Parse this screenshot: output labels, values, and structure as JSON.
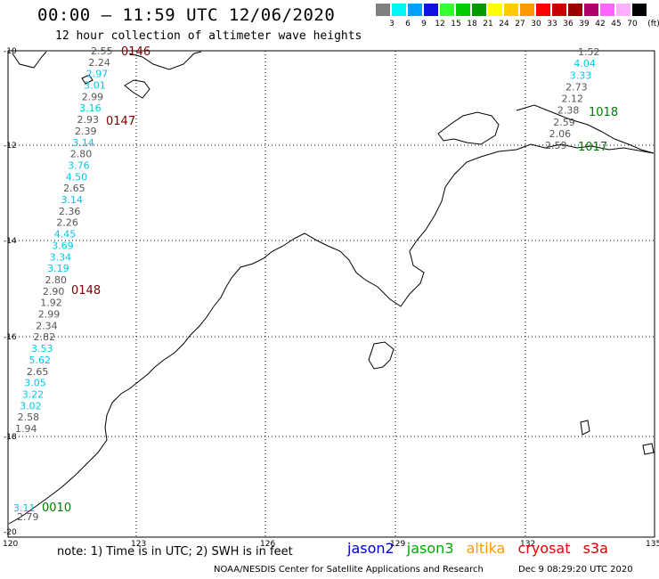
{
  "title": "00:00 – 11:59 UTC 12/06/2020",
  "subtitle": "12 hour collection of altimeter wave heights",
  "legend": {
    "colors": [
      "#7f7f7f",
      "#00f5f5",
      "#00a0ff",
      "#1010e0",
      "#33ff33",
      "#00cc00",
      "#009900",
      "#ffff00",
      "#ffcc00",
      "#ff9900",
      "#ff0000",
      "#cc0000",
      "#990000",
      "#b0006a",
      "#ff66ff",
      "#ffb0ff",
      "#000000"
    ],
    "levels": [
      "3",
      "6",
      "9",
      "12",
      "15",
      "18",
      "21",
      "24",
      "27",
      "30",
      "33",
      "36",
      "39",
      "42",
      "45",
      "70"
    ],
    "unit": "(ft)"
  },
  "axes": {
    "lat_labels": [
      "-10",
      "-12",
      "-14",
      "-16",
      "-18",
      "-20"
    ],
    "lon_labels": [
      "120",
      "123",
      "126",
      "129",
      "132",
      "135"
    ]
  },
  "passes": [
    {
      "time": "0146",
      "color": "#7a0000"
    },
    {
      "time": "0147",
      "color": "#7a0000"
    },
    {
      "time": "0148",
      "color": "#7a0000"
    },
    {
      "time": "0010",
      "color": "#007a00"
    },
    {
      "time": "1018",
      "color": "#007a00"
    },
    {
      "time": "1017",
      "color": "#007a00"
    }
  ],
  "track_a_values": [
    {
      "v": "2.55",
      "c": "#555555"
    },
    {
      "v": "2.24",
      "c": "#555555"
    },
    {
      "v": "2.97",
      "c": "#00c8e8"
    },
    {
      "v": "3.01",
      "c": "#00c8e8"
    },
    {
      "v": "2.99",
      "c": "#555555"
    },
    {
      "v": "3.16",
      "c": "#00c8e8"
    },
    {
      "v": "2.93",
      "c": "#555555"
    },
    {
      "v": "2.39",
      "c": "#555555"
    },
    {
      "v": "3.14",
      "c": "#00c8e8"
    },
    {
      "v": "2.80",
      "c": "#555555"
    },
    {
      "v": "3.76",
      "c": "#00c8e8"
    },
    {
      "v": "4.50",
      "c": "#00c8e8"
    },
    {
      "v": "2.65",
      "c": "#555555"
    },
    {
      "v": "3.14",
      "c": "#00c8e8"
    },
    {
      "v": "2.36",
      "c": "#555555"
    },
    {
      "v": "2.26",
      "c": "#555555"
    },
    {
      "v": "4.45",
      "c": "#00c8e8"
    },
    {
      "v": "3.69",
      "c": "#00c8e8"
    },
    {
      "v": "3.34",
      "c": "#00c8e8"
    },
    {
      "v": "3.19",
      "c": "#00c8e8"
    },
    {
      "v": "2.80",
      "c": "#555555"
    },
    {
      "v": "2.90",
      "c": "#555555"
    },
    {
      "v": "1.92",
      "c": "#555555"
    },
    {
      "v": "2.99",
      "c": "#555555"
    },
    {
      "v": "2.34",
      "c": "#555555"
    },
    {
      "v": "2.82",
      "c": "#555555"
    },
    {
      "v": "3.53",
      "c": "#00c8e8"
    },
    {
      "v": "5.62",
      "c": "#00c8e8"
    },
    {
      "v": "2.65",
      "c": "#555555"
    },
    {
      "v": "3.05",
      "c": "#00c8e8"
    },
    {
      "v": "3.22",
      "c": "#00c8e8"
    },
    {
      "v": "3.02",
      "c": "#00c8e8"
    },
    {
      "v": "2.58",
      "c": "#555555"
    },
    {
      "v": "1.94",
      "c": "#555555"
    }
  ],
  "track_b_values": [
    {
      "v": "1.52",
      "c": "#555555"
    },
    {
      "v": "4.04",
      "c": "#00c8e8"
    },
    {
      "v": "3.33",
      "c": "#00c8e8"
    },
    {
      "v": "2.73",
      "c": "#555555"
    },
    {
      "v": "2.12",
      "c": "#555555"
    },
    {
      "v": "2.38",
      "c": "#555555"
    },
    {
      "v": "2.59",
      "c": "#555555"
    },
    {
      "v": "2.06",
      "c": "#555555"
    },
    {
      "v": "2.59",
      "c": "#555555"
    }
  ],
  "track_c_values": [
    {
      "v": "3.11",
      "c": "#00c8e8"
    },
    {
      "v": "2.79",
      "c": "#555555"
    }
  ],
  "note": "note: 1) Time is in UTC; 2) SWH is in feet",
  "satellites": [
    {
      "name": "jason2",
      "color": "#0000cc"
    },
    {
      "name": "jason3",
      "color": "#00aa00"
    },
    {
      "name": "altika",
      "color": "#ff9900"
    },
    {
      "name": "cryosat",
      "color": "#ee0000"
    },
    {
      "name": "s3a",
      "color": "#cc0000"
    }
  ],
  "credit": "NOAA/NESDIS Center for Satellite Applications and Research",
  "credit_time": "Dec  9 08:29:20 UTC 2020"
}
